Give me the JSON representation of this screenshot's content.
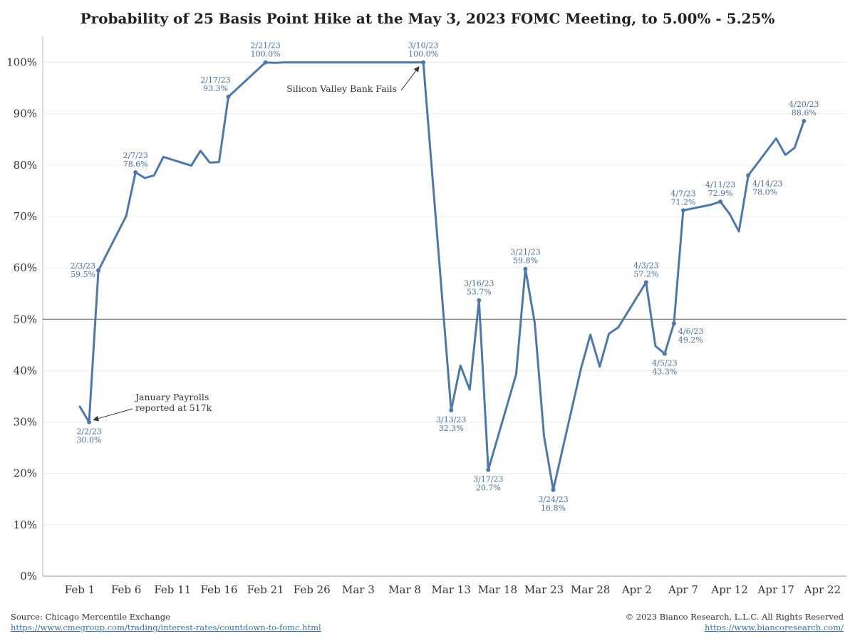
{
  "chart_data": {
    "type": "line",
    "title": "Probability of 25 Basis Point Hike at the May 3, 2023 FOMC Meeting, to 5.00% - 5.25%",
    "ylim": [
      0,
      105
    ],
    "y_ticks": [
      0,
      10,
      20,
      30,
      40,
      50,
      60,
      70,
      80,
      90,
      100
    ],
    "y_tick_labels": [
      "0%",
      "10%",
      "20%",
      "30%",
      "40%",
      "50%",
      "60%",
      "70%",
      "80%",
      "90%",
      "100%"
    ],
    "x_ticks": [
      "2023-02-01",
      "2023-02-06",
      "2023-02-11",
      "2023-02-16",
      "2023-02-21",
      "2023-02-26",
      "2023-03-03",
      "2023-03-08",
      "2023-03-13",
      "2023-03-18",
      "2023-03-23",
      "2023-03-28",
      "2023-04-02",
      "2023-04-07",
      "2023-04-12",
      "2023-04-17",
      "2023-04-22"
    ],
    "x_tick_labels": [
      "Feb 1",
      "Feb 6",
      "Feb 11",
      "Feb 16",
      "Feb 21",
      "Feb 26",
      "Mar 3",
      "Mar 8",
      "Mar 13",
      "Mar 18",
      "Mar 23",
      "Mar 28",
      "Apr 2",
      "Apr 7",
      "Apr 12",
      "Apr 17",
      "Apr 22"
    ],
    "reference_line": 50,
    "line_color": "#4e79a7",
    "series": [
      {
        "x": [
          "2023-02-01",
          "2023-02-02",
          "2023-02-03",
          "2023-02-06",
          "2023-02-07",
          "2023-02-08",
          "2023-02-09",
          "2023-02-10",
          "2023-02-13",
          "2023-02-14",
          "2023-02-15",
          "2023-02-16",
          "2023-02-17",
          "2023-02-21",
          "2023-02-22",
          "2023-02-23",
          "2023-03-06",
          "2023-03-07",
          "2023-03-08",
          "2023-03-09",
          "2023-03-10",
          "2023-03-13",
          "2023-03-14",
          "2023-03-15",
          "2023-03-16",
          "2023-03-17",
          "2023-03-20",
          "2023-03-21",
          "2023-03-22",
          "2023-03-23",
          "2023-03-24",
          "2023-03-27",
          "2023-03-28",
          "2023-03-29",
          "2023-03-30",
          "2023-03-31",
          "2023-04-03",
          "2023-04-04",
          "2023-04-05",
          "2023-04-06",
          "2023-04-07",
          "2023-04-10",
          "2023-04-11",
          "2023-04-12",
          "2023-04-13",
          "2023-04-14",
          "2023-04-17",
          "2023-04-18",
          "2023-04-19",
          "2023-04-20"
        ],
        "values": [
          33.0,
          30.0,
          59.5,
          70.1,
          78.6,
          77.5,
          78.0,
          81.6,
          79.9,
          82.8,
          80.5,
          80.6,
          93.3,
          100.0,
          99.9,
          100.0,
          100.0,
          100.0,
          100.0,
          100.0,
          100.0,
          32.3,
          41.0,
          36.3,
          53.7,
          20.7,
          39.3,
          59.8,
          49.3,
          27.3,
          16.8,
          40.5,
          47.0,
          40.8,
          47.2,
          48.4,
          57.2,
          44.8,
          43.3,
          49.2,
          71.2,
          72.3,
          72.9,
          70.5,
          67.1,
          78.0,
          85.2,
          82.0,
          83.4,
          88.6
        ]
      }
    ],
    "data_labels": [
      {
        "x": "2023-02-02",
        "date": "2/2/23",
        "value": "30.0%",
        "pos": "below"
      },
      {
        "x": "2023-02-03",
        "date": "2/3/23",
        "value": "59.5%",
        "pos": "left"
      },
      {
        "x": "2023-02-07",
        "date": "2/7/23",
        "value": "78.6%",
        "pos": "above"
      },
      {
        "x": "2023-02-17",
        "date": "2/17/23",
        "value": "93.3%",
        "pos": "aboveleft"
      },
      {
        "x": "2023-02-21",
        "date": "2/21/23",
        "value": "100.0%",
        "pos": "above"
      },
      {
        "x": "2023-03-10",
        "date": "3/10/23",
        "value": "100.0%",
        "pos": "above"
      },
      {
        "x": "2023-03-13",
        "date": "3/13/23",
        "value": "32.3%",
        "pos": "below"
      },
      {
        "x": "2023-03-16",
        "date": "3/16/23",
        "value": "53.7%",
        "pos": "above"
      },
      {
        "x": "2023-03-17",
        "date": "3/17/23",
        "value": "20.7%",
        "pos": "below"
      },
      {
        "x": "2023-03-21",
        "date": "3/21/23",
        "value": "59.8%",
        "pos": "above"
      },
      {
        "x": "2023-03-24",
        "date": "3/24/23",
        "value": "16.8%",
        "pos": "below"
      },
      {
        "x": "2023-04-03",
        "date": "4/3/23",
        "value": "57.2%",
        "pos": "above"
      },
      {
        "x": "2023-04-05",
        "date": "4/5/23",
        "value": "43.3%",
        "pos": "below"
      },
      {
        "x": "2023-04-06",
        "date": "4/6/23",
        "value": "49.2%",
        "pos": "right"
      },
      {
        "x": "2023-04-07",
        "date": "4/7/23",
        "value": "71.2%",
        "pos": "above"
      },
      {
        "x": "2023-04-11",
        "date": "4/11/23",
        "value": "72.9%",
        "pos": "above"
      },
      {
        "x": "2023-04-14",
        "date": "4/14/23",
        "value": "78.0%",
        "pos": "right"
      },
      {
        "x": "2023-04-20",
        "date": "4/20/23",
        "value": "88.6%",
        "pos": "above"
      }
    ],
    "annotations": [
      {
        "lines": [
          "January Payrolls",
          "reported at 517k"
        ],
        "target_x": "2023-02-02",
        "target_y": 30.0
      },
      {
        "lines": [
          "Silicon Valley Bank Fails"
        ],
        "target_x": "2023-03-10",
        "target_y": 100.0
      }
    ]
  },
  "footer": {
    "source_label": "Source: Chicago Mercentile Exchange",
    "source_url": "https://www.cmegroup.com/trading/interest-rates/countdown-to-fomc.html",
    "copyright": "© 2023 Bianco Research, L.L.C. All Rights Reserved",
    "site_url": "https://www.biancoresearch.com/"
  }
}
